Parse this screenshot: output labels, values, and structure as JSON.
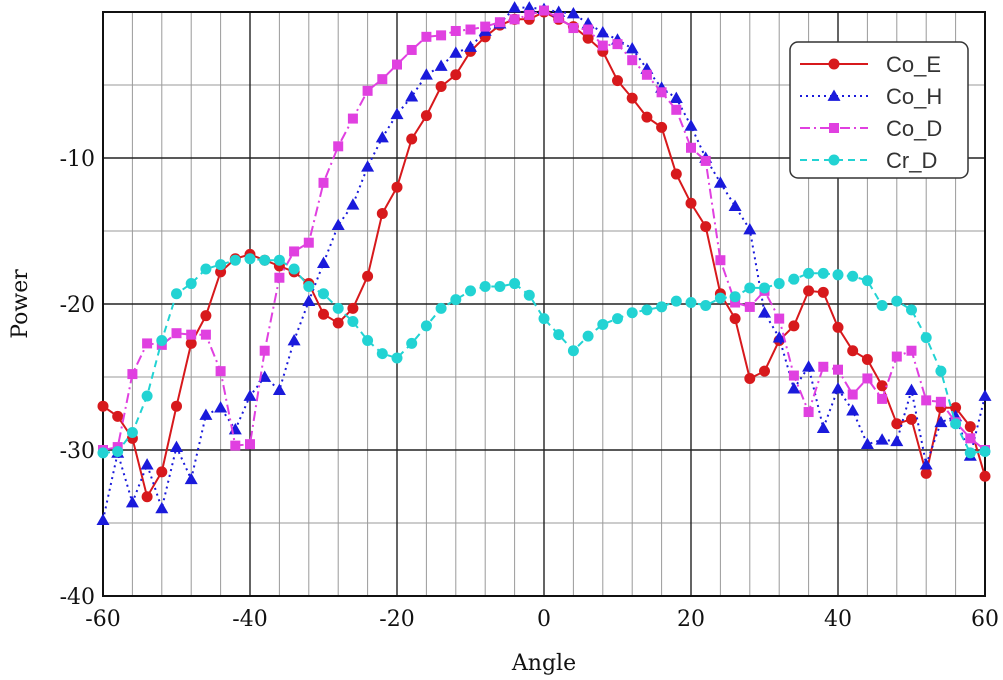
{
  "chart_data": {
    "type": "line",
    "title": "",
    "xlabel": "Angle",
    "ylabel": "Power",
    "xlim": [
      -60,
      60
    ],
    "ylim": [
      -40,
      0
    ],
    "x_ticks": [
      -60,
      -40,
      -20,
      0,
      20,
      40,
      60
    ],
    "y_ticks": [
      -10,
      -20,
      -30,
      -40
    ],
    "x_tick_labels": [
      "-60",
      "-40",
      "-20",
      "0",
      "20",
      "40",
      "60"
    ],
    "y_tick_labels": [
      "-10",
      "-20",
      "-30",
      "-40"
    ],
    "grid": true,
    "legend_position": "top-right",
    "colors": {
      "Co_E": "#d7191c",
      "Co_H": "#1a1adb",
      "Co_D": "#e040e0",
      "Cr_D": "#22d3d3"
    },
    "series": [
      {
        "name": "Co_E",
        "line_style": "solid",
        "marker": "circle",
        "x": [
          -60,
          -58,
          -56,
          -54,
          -52,
          -50,
          -48,
          -46,
          -44,
          -42,
          -40,
          -38,
          -36,
          -34,
          -32,
          -30,
          -28,
          -26,
          -24,
          -22,
          -20,
          -18,
          -16,
          -14,
          -12,
          -10,
          -8,
          -6,
          -4,
          -2,
          0,
          2,
          4,
          6,
          8,
          10,
          12,
          14,
          16,
          18,
          20,
          22,
          24,
          26,
          28,
          30,
          32,
          34,
          36,
          38,
          40,
          42,
          44,
          46,
          48,
          50,
          52,
          54,
          56,
          58,
          60
        ],
        "values": [
          -27,
          -27.7,
          -29.2,
          -33.2,
          -31.5,
          -27,
          -22.7,
          -20.8,
          -17.8,
          -16.9,
          -16.6,
          -17,
          -17.4,
          -17.8,
          -18.6,
          -20.7,
          -21.3,
          -20.3,
          -18.1,
          -13.8,
          -12,
          -8.7,
          -7.1,
          -5.1,
          -4.3,
          -2.7,
          -1.7,
          -0.9,
          -0.5,
          -0.5,
          0,
          -0.5,
          -1,
          -1.8,
          -2.7,
          -4.7,
          -5.9,
          -7.2,
          -7.9,
          -11.1,
          -13.1,
          -14.7,
          -19.3,
          -21,
          -25.1,
          -24.6,
          -22.5,
          -21.5,
          -19.1,
          -19.2,
          -21.6,
          -23.2,
          -23.8,
          -25.6,
          -28.2,
          -27.9,
          -31.6,
          -27.1,
          -27.1,
          -28.4,
          -31.8
        ]
      },
      {
        "name": "Co_H",
        "line_style": "dotted",
        "marker": "triangle",
        "x": [
          -60,
          -58,
          -56,
          -54,
          -52,
          -50,
          -48,
          -46,
          -44,
          -42,
          -40,
          -38,
          -36,
          -34,
          -32,
          -30,
          -28,
          -26,
          -24,
          -22,
          -20,
          -18,
          -16,
          -14,
          -12,
          -10,
          -8,
          -6,
          -4,
          -2,
          0,
          2,
          4,
          6,
          8,
          10,
          12,
          14,
          16,
          18,
          20,
          22,
          24,
          26,
          28,
          30,
          32,
          34,
          36,
          38,
          40,
          42,
          44,
          46,
          48,
          50,
          52,
          54,
          56,
          58,
          60
        ],
        "values": [
          -34.8,
          -30.2,
          -33.6,
          -31,
          -34,
          -29.8,
          -32,
          -27.6,
          -27.1,
          -28.6,
          -26.3,
          -25,
          -25.9,
          -22.5,
          -19.8,
          -17.2,
          -14.6,
          -13.2,
          -10.6,
          -8.6,
          -7,
          -5.8,
          -4.3,
          -3.7,
          -2.8,
          -2.4,
          -1.3,
          -0.8,
          0.3,
          0.3,
          0.2,
          0,
          -0.1,
          -0.8,
          -1.4,
          -1.9,
          -2.5,
          -3.9,
          -5.2,
          -5.9,
          -7.8,
          -10,
          -11.7,
          -13.3,
          -14.9,
          -20.6,
          -22.3,
          -25.8,
          -24.3,
          -28.5,
          -25.8,
          -27.3,
          -29.6,
          -29.3,
          -29.4,
          -25.9,
          -31,
          -28.1,
          -27.7,
          -30.4,
          -26.3
        ]
      },
      {
        "name": "Co_D",
        "line_style": "dashdot",
        "marker": "square",
        "x": [
          -60,
          -58,
          -56,
          -54,
          -52,
          -50,
          -48,
          -46,
          -44,
          -42,
          -40,
          -38,
          -36,
          -34,
          -32,
          -30,
          -28,
          -26,
          -24,
          -22,
          -20,
          -18,
          -16,
          -14,
          -12,
          -10,
          -8,
          -6,
          -4,
          -2,
          0,
          2,
          4,
          6,
          8,
          10,
          12,
          14,
          16,
          18,
          20,
          22,
          24,
          26,
          28,
          30,
          32,
          34,
          36,
          38,
          40,
          42,
          44,
          46,
          48,
          50,
          52,
          54,
          56,
          58,
          60
        ],
        "values": [
          -30,
          -29.8,
          -24.8,
          -22.7,
          -22.8,
          -22,
          -22.1,
          -22.1,
          -24.6,
          -29.7,
          -29.6,
          -23.2,
          -18.2,
          -16.4,
          -15.8,
          -11.7,
          -9.2,
          -7.3,
          -5.4,
          -4.6,
          -3.6,
          -2.6,
          -1.7,
          -1.6,
          -1.3,
          -1.2,
          -1,
          -0.7,
          -0.5,
          -0.2,
          0.1,
          -0.4,
          -1.1,
          -1.2,
          -2.3,
          -2.2,
          -3.3,
          -4.3,
          -5.5,
          -6.7,
          -9.3,
          -10.2,
          -17,
          -19.9,
          -20.2,
          -19.1,
          -21,
          -24.9,
          -27.4,
          -24.3,
          -24.5,
          -26.2,
          -25.1,
          -26.5,
          -23.6,
          -23.2,
          -26.6,
          -26.7,
          -28.1,
          -29.2,
          -30
        ]
      },
      {
        "name": "Cr_D",
        "line_style": "dashed",
        "marker": "circle",
        "x": [
          -60,
          -58,
          -56,
          -54,
          -52,
          -50,
          -48,
          -46,
          -44,
          -42,
          -40,
          -38,
          -36,
          -34,
          -32,
          -30,
          -28,
          -26,
          -24,
          -22,
          -20,
          -18,
          -16,
          -14,
          -12,
          -10,
          -8,
          -6,
          -4,
          -2,
          0,
          2,
          4,
          6,
          8,
          10,
          12,
          14,
          16,
          18,
          20,
          22,
          24,
          26,
          28,
          30,
          32,
          34,
          36,
          38,
          40,
          42,
          44,
          46,
          48,
          50,
          52,
          54,
          56,
          58,
          60
        ],
        "values": [
          -30.2,
          -30.1,
          -28.8,
          -26.3,
          -22.5,
          -19.3,
          -18.6,
          -17.6,
          -17.3,
          -17,
          -16.9,
          -17,
          -17,
          -17.6,
          -18.8,
          -19.3,
          -20.3,
          -21.2,
          -22.5,
          -23.4,
          -23.7,
          -22.7,
          -21.5,
          -20.3,
          -19.7,
          -19.1,
          -18.8,
          -18.8,
          -18.6,
          -19.4,
          -21,
          -22.1,
          -23.2,
          -22.2,
          -21.4,
          -21,
          -20.6,
          -20.4,
          -20.2,
          -19.8,
          -19.9,
          -20.1,
          -19.6,
          -19.5,
          -18.9,
          -18.9,
          -18.6,
          -18.3,
          -17.9,
          -17.9,
          -18,
          -18.1,
          -18.4,
          -20.1,
          -19.8,
          -20.4,
          -22.3,
          -24.6,
          -28.2,
          -30.2,
          -30.1
        ]
      }
    ]
  }
}
